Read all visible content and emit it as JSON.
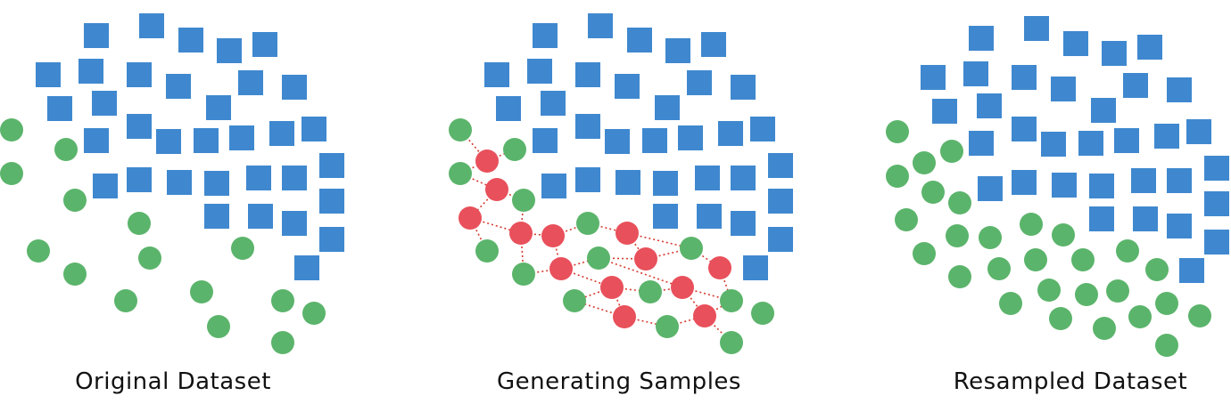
{
  "captions": {
    "original": "Original Dataset",
    "generating": "Generating Samples",
    "resampled": "Resampled Dataset"
  },
  "colors": {
    "majority": "#3F88CF",
    "minority": "#5BB46B",
    "synthetic": "#E8505B",
    "link": "#D63B2F"
  },
  "legend_semantics": {
    "majority_shape": "square",
    "minority_shape": "circle",
    "synthetic_shape": "circle"
  }
}
